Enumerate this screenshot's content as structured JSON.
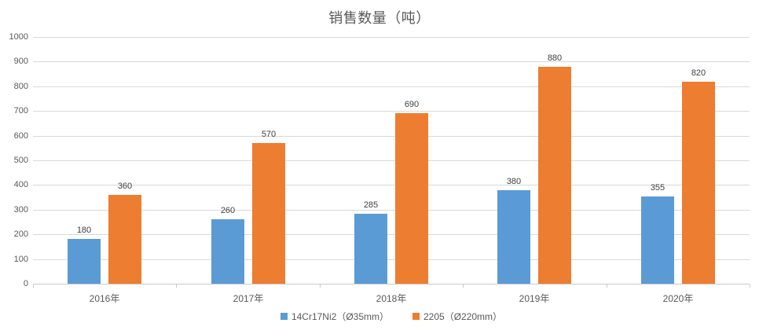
{
  "title": "销售数量（吨）",
  "chart_data": {
    "type": "bar",
    "title": "销售数量（吨）",
    "categories": [
      "2016年",
      "2017年",
      "2018年",
      "2019年",
      "2020年"
    ],
    "series": [
      {
        "name": "14Cr17Ni2（Ø35mm）",
        "color": "#5B9BD5",
        "values": [
          180,
          260,
          285,
          380,
          355
        ]
      },
      {
        "name": "2205（Ø220mm）",
        "color": "#ED7D31",
        "values": [
          360,
          570,
          690,
          880,
          820
        ]
      }
    ],
    "yticks": [
      0,
      100,
      200,
      300,
      400,
      500,
      600,
      700,
      800,
      900,
      1000
    ],
    "ylim": [
      0,
      1000
    ],
    "xlabel": "",
    "ylabel": "",
    "grid": true,
    "data_labels": true,
    "legend_position": "bottom"
  },
  "colors": {
    "series1": "#5B9BD5",
    "series2": "#ED7D31",
    "title_text": "#595959",
    "axis_text": "#595959",
    "data_label_text": "#404040",
    "gridline": "#d9d9d9",
    "axis_line": "#c9c9c9",
    "background": "#ffffff"
  }
}
